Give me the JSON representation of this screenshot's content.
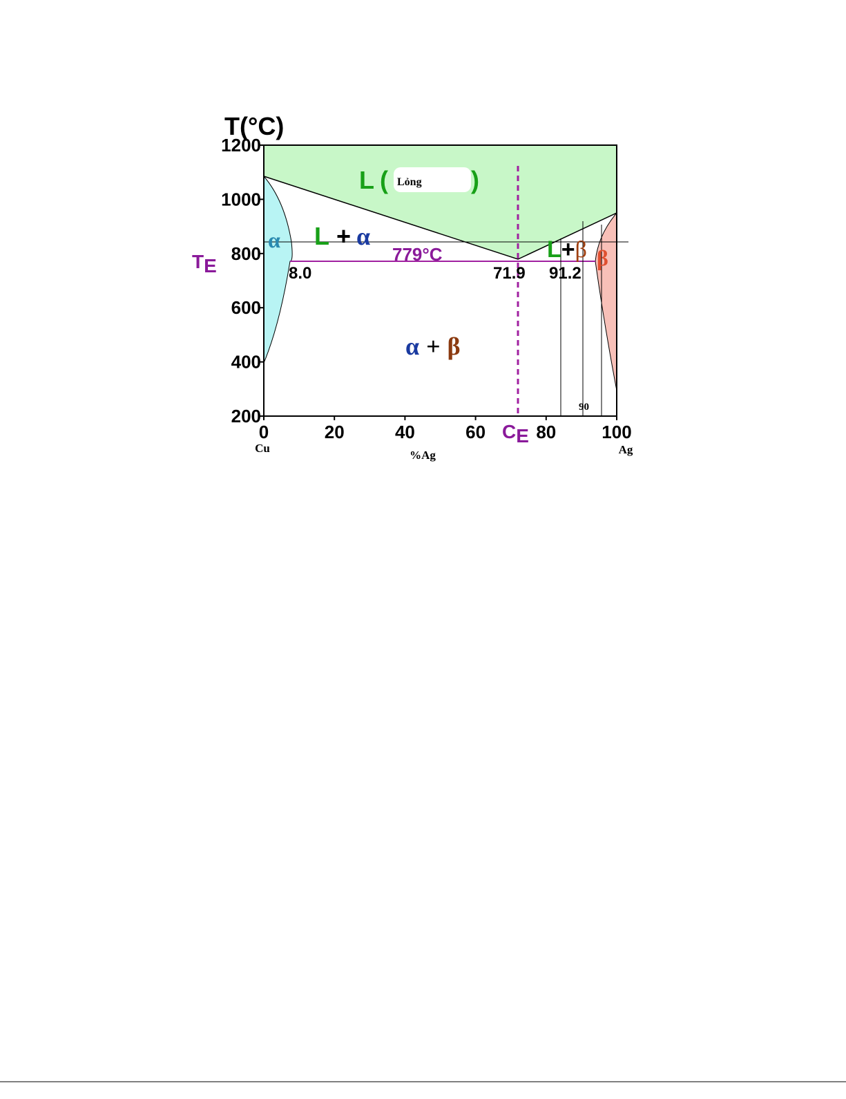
{
  "diagram": {
    "title": "T(°C)",
    "axes": {
      "xlim": [
        0,
        100
      ],
      "ylim": [
        200,
        1200
      ],
      "xticks": [
        0,
        20,
        40,
        60,
        80,
        100
      ],
      "yticks": [
        200,
        400,
        600,
        800,
        1000,
        1200
      ],
      "x_label": "%Ag",
      "x_left": "Cu",
      "x_right": "Ag"
    },
    "regions": {
      "liquid": {
        "letter": "L",
        "open": "(",
        "name": "Lỏng",
        "close": ")"
      },
      "l_alpha": {
        "letter": "L",
        "plus": "+",
        "phase": "α"
      },
      "alpha": "α",
      "l_beta": {
        "letter": "L",
        "plus": "+",
        "phase": "β"
      },
      "beta": "β",
      "alpha_beta": {
        "alpha": "α",
        "plus": "+",
        "beta": "β"
      }
    },
    "eutectic": {
      "temperature": "779°C",
      "alpha_limit": "8.0",
      "composition": "71.9",
      "beta_limit": "91.2",
      "te": {
        "letter": "T",
        "sub": "E"
      },
      "ce": {
        "letter": "C",
        "sub": "E"
      }
    },
    "marker": "90"
  }
}
